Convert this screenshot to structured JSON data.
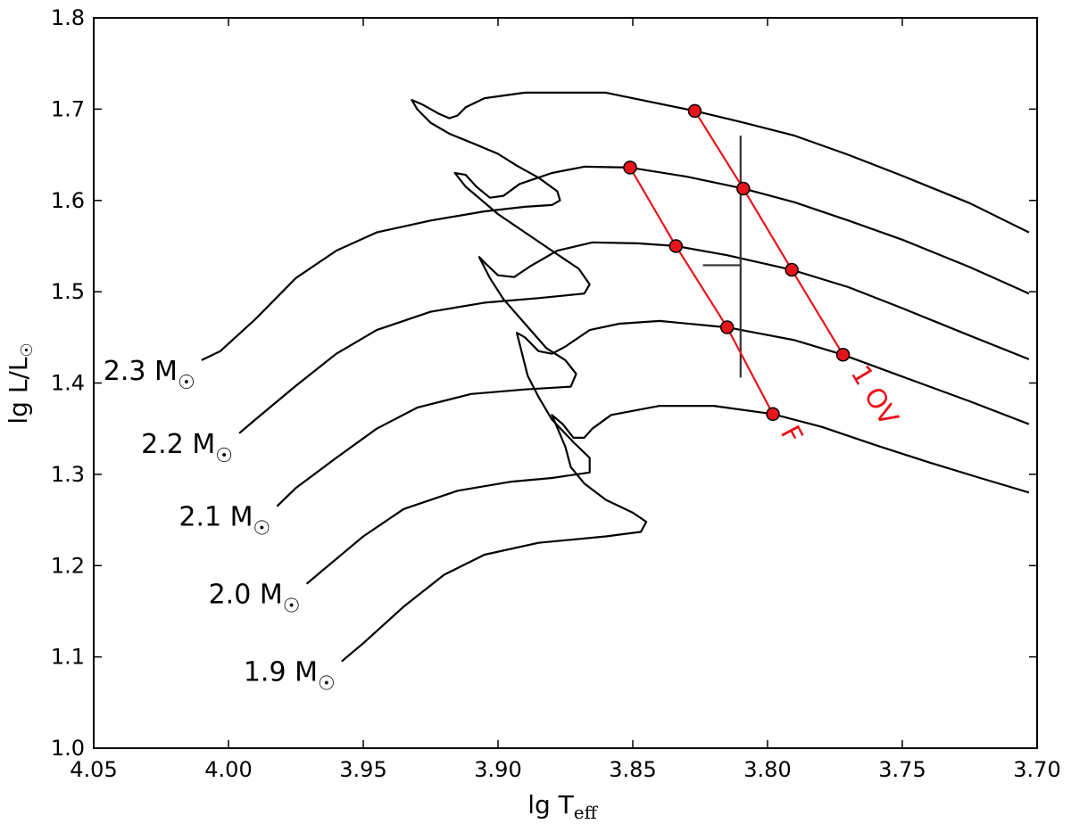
{
  "chart_data": {
    "type": "line",
    "xlabel": "lg T",
    "xlabel_sub": "eff",
    "ylabel": "lg L/L",
    "ylabel_symbol": "☉",
    "xlim": [
      4.05,
      3.7
    ],
    "ylim": [
      1.0,
      1.8
    ],
    "x_ticks": [
      "4.05",
      "4.00",
      "3.95",
      "3.90",
      "3.85",
      "3.80",
      "3.75",
      "3.70"
    ],
    "y_ticks": [
      "1.0",
      "1.1",
      "1.2",
      "1.3",
      "1.4",
      "1.5",
      "1.6",
      "1.7",
      "1.8"
    ],
    "grid": false,
    "line_color": "#000000",
    "mode_color": "#e8141b",
    "tracks": [
      {
        "label": "2.3 M",
        "symbol": "☉",
        "points": [
          [
            4.01,
            1.425
          ],
          [
            4.003,
            1.435
          ],
          [
            3.99,
            1.47
          ],
          [
            3.975,
            1.515
          ],
          [
            3.96,
            1.545
          ],
          [
            3.945,
            1.565
          ],
          [
            3.925,
            1.578
          ],
          [
            3.905,
            1.588
          ],
          [
            3.89,
            1.593
          ],
          [
            3.88,
            1.595
          ],
          [
            3.877,
            1.6
          ],
          [
            3.878,
            1.61
          ],
          [
            3.885,
            1.625
          ],
          [
            3.893,
            1.638
          ],
          [
            3.9,
            1.651
          ],
          [
            3.908,
            1.661
          ],
          [
            3.918,
            1.673
          ],
          [
            3.925,
            1.685
          ],
          [
            3.93,
            1.7
          ],
          [
            3.932,
            1.71
          ],
          [
            3.928,
            1.705
          ],
          [
            3.922,
            1.695
          ],
          [
            3.918,
            1.69
          ],
          [
            3.915,
            1.693
          ],
          [
            3.912,
            1.702
          ],
          [
            3.905,
            1.712
          ],
          [
            3.89,
            1.718
          ],
          [
            3.86,
            1.718
          ],
          [
            3.827,
            1.698
          ],
          [
            3.81,
            1.686
          ],
          [
            3.79,
            1.671
          ],
          [
            3.77,
            1.65
          ],
          [
            3.75,
            1.627
          ],
          [
            3.725,
            1.597
          ],
          [
            3.703,
            1.565
          ]
        ]
      },
      {
        "label": "2.2 M",
        "symbol": "☉",
        "points": [
          [
            3.996,
            1.345
          ],
          [
            3.99,
            1.36
          ],
          [
            3.975,
            1.397
          ],
          [
            3.96,
            1.432
          ],
          [
            3.945,
            1.458
          ],
          [
            3.925,
            1.478
          ],
          [
            3.905,
            1.488
          ],
          [
            3.885,
            1.493
          ],
          [
            3.868,
            1.498
          ],
          [
            3.866,
            1.508
          ],
          [
            3.87,
            1.525
          ],
          [
            3.88,
            1.545
          ],
          [
            3.89,
            1.565
          ],
          [
            3.9,
            1.585
          ],
          [
            3.906,
            1.6
          ],
          [
            3.912,
            1.615
          ],
          [
            3.916,
            1.63
          ],
          [
            3.912,
            1.628
          ],
          [
            3.908,
            1.615
          ],
          [
            3.903,
            1.603
          ],
          [
            3.898,
            1.605
          ],
          [
            3.892,
            1.618
          ],
          [
            3.88,
            1.63
          ],
          [
            3.868,
            1.637
          ],
          [
            3.851,
            1.636
          ],
          [
            3.83,
            1.626
          ],
          [
            3.809,
            1.613
          ],
          [
            3.79,
            1.598
          ],
          [
            3.77,
            1.578
          ],
          [
            3.75,
            1.557
          ],
          [
            3.725,
            1.527
          ],
          [
            3.703,
            1.498
          ]
        ]
      },
      {
        "label": "2.1 M",
        "symbol": "☉",
        "points": [
          [
            3.982,
            1.265
          ],
          [
            3.975,
            1.285
          ],
          [
            3.96,
            1.318
          ],
          [
            3.945,
            1.35
          ],
          [
            3.93,
            1.373
          ],
          [
            3.91,
            1.388
          ],
          [
            3.89,
            1.393
          ],
          [
            3.873,
            1.396
          ],
          [
            3.871,
            1.41
          ],
          [
            3.875,
            1.425
          ],
          [
            3.882,
            1.438
          ],
          [
            3.89,
            1.465
          ],
          [
            3.898,
            1.492
          ],
          [
            3.903,
            1.515
          ],
          [
            3.907,
            1.538
          ],
          [
            3.905,
            1.532
          ],
          [
            3.9,
            1.518
          ],
          [
            3.894,
            1.516
          ],
          [
            3.888,
            1.528
          ],
          [
            3.878,
            1.545
          ],
          [
            3.865,
            1.554
          ],
          [
            3.848,
            1.553
          ],
          [
            3.834,
            1.55
          ],
          [
            3.815,
            1.54
          ],
          [
            3.791,
            1.524
          ],
          [
            3.77,
            1.505
          ],
          [
            3.75,
            1.482
          ],
          [
            3.725,
            1.452
          ],
          [
            3.703,
            1.426
          ]
        ]
      },
      {
        "label": "2.0 M",
        "symbol": "☉",
        "points": [
          [
            3.971,
            1.18
          ],
          [
            3.965,
            1.195
          ],
          [
            3.95,
            1.232
          ],
          [
            3.935,
            1.262
          ],
          [
            3.915,
            1.282
          ],
          [
            3.895,
            1.292
          ],
          [
            3.88,
            1.296
          ],
          [
            3.866,
            1.302
          ],
          [
            3.866,
            1.318
          ],
          [
            3.872,
            1.335
          ],
          [
            3.88,
            1.36
          ],
          [
            3.885,
            1.385
          ],
          [
            3.889,
            1.408
          ],
          [
            3.893,
            1.455
          ],
          [
            3.89,
            1.45
          ],
          [
            3.885,
            1.435
          ],
          [
            3.88,
            1.432
          ],
          [
            3.875,
            1.44
          ],
          [
            3.866,
            1.458
          ],
          [
            3.855,
            1.465
          ],
          [
            3.84,
            1.468
          ],
          [
            3.815,
            1.461
          ],
          [
            3.79,
            1.447
          ],
          [
            3.772,
            1.431
          ],
          [
            3.75,
            1.407
          ],
          [
            3.725,
            1.38
          ],
          [
            3.703,
            1.355
          ]
        ]
      },
      {
        "label": "1.9 M",
        "symbol": "☉",
        "points": [
          [
            3.958,
            1.095
          ],
          [
            3.95,
            1.115
          ],
          [
            3.935,
            1.155
          ],
          [
            3.92,
            1.19
          ],
          [
            3.905,
            1.212
          ],
          [
            3.885,
            1.225
          ],
          [
            3.86,
            1.232
          ],
          [
            3.847,
            1.237
          ],
          [
            3.845,
            1.248
          ],
          [
            3.85,
            1.258
          ],
          [
            3.86,
            1.272
          ],
          [
            3.868,
            1.29
          ],
          [
            3.873,
            1.308
          ],
          [
            3.875,
            1.33
          ],
          [
            3.88,
            1.365
          ],
          [
            3.876,
            1.355
          ],
          [
            3.872,
            1.34
          ],
          [
            3.868,
            1.34
          ],
          [
            3.865,
            1.35
          ],
          [
            3.858,
            1.365
          ],
          [
            3.84,
            1.375
          ],
          [
            3.82,
            1.375
          ],
          [
            3.798,
            1.366
          ],
          [
            3.78,
            1.352
          ],
          [
            3.76,
            1.332
          ],
          [
            3.74,
            1.313
          ],
          [
            3.72,
            1.295
          ],
          [
            3.703,
            1.28
          ]
        ]
      }
    ],
    "mode_lines": [
      {
        "label": "F",
        "points": [
          [
            3.851,
            1.636
          ],
          [
            3.834,
            1.55
          ],
          [
            3.815,
            1.461
          ],
          [
            3.798,
            1.366
          ]
        ]
      },
      {
        "label": "1 OV",
        "points": [
          [
            3.827,
            1.698
          ],
          [
            3.809,
            1.613
          ],
          [
            3.791,
            1.524
          ],
          [
            3.772,
            1.431
          ]
        ]
      }
    ],
    "error_bar": {
      "center": [
        3.81,
        1.529
      ],
      "x_err": [
        3.824,
        3.81
      ],
      "y_err": [
        1.406,
        1.671
      ],
      "color": "#333333"
    }
  }
}
